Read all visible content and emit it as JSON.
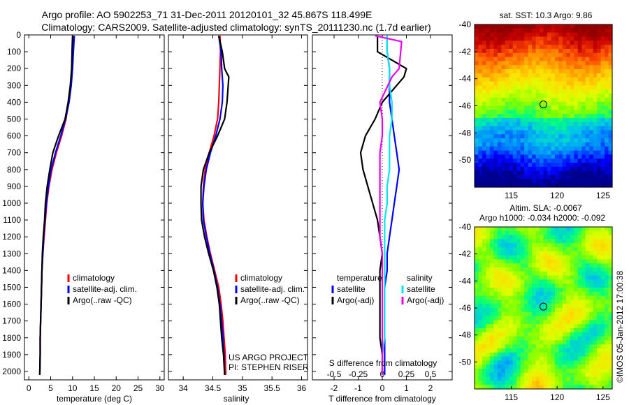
{
  "figure": {
    "title_line1": "Argo profile: AO 5902253_71 31-Dec-2011 20120101_32 45.867S 118.499E",
    "title_line2": "Climatology: CARS2009. Satellite-adjusted climatology: synTS_20111230.nc (1.7d earlier)",
    "credit": "©IMOS 05-Jan-2012 17:00:38",
    "project_line1": "US ARGO PROJECT",
    "project_line2": "PI: STEPHEN RISER"
  },
  "colors": {
    "clim": "#ff0000",
    "sat": "#0000ff",
    "argo": "#000000",
    "sat_s": "#00e5ee",
    "argo_s": "#ee00ee"
  },
  "chart_data": [
    {
      "type": "line",
      "id": "temperature",
      "xlabel": "temperature (deg C)",
      "ylim": [
        2050,
        0
      ],
      "xlim": [
        -1,
        31
      ],
      "xticks": [
        0,
        5,
        10,
        15,
        20,
        25,
        30
      ],
      "yticks": [
        0,
        100,
        200,
        300,
        400,
        500,
        600,
        700,
        800,
        900,
        1000,
        1100,
        1200,
        1300,
        1400,
        1500,
        1600,
        1700,
        1800,
        1900,
        2000
      ],
      "legend": [
        "climatology",
        "satellite-adj. clim.",
        "Argo(..raw -QC)"
      ],
      "series": [
        {
          "name": "climatology",
          "color": "clim",
          "x": [
            10.2,
            10.1,
            9.9,
            9.6,
            9.1,
            8.5,
            7.5,
            6.3,
            5.3,
            4.6,
            4.1,
            3.8,
            3.5,
            3.2,
            3.0,
            2.9,
            2.8,
            2.7,
            2.6,
            2.6,
            2.5
          ],
          "y": [
            5,
            100,
            200,
            300,
            400,
            500,
            600,
            700,
            800,
            900,
            1000,
            1100,
            1200,
            1300,
            1400,
            1500,
            1600,
            1700,
            1800,
            1900,
            2020
          ]
        },
        {
          "name": "satellite-adj. clim.",
          "color": "sat",
          "x": [
            10.4,
            10.2,
            10.0,
            9.7,
            9.2,
            8.4,
            7.3,
            6.1,
            5.1,
            4.5,
            4.0,
            3.7,
            3.4,
            3.2,
            3.0,
            2.9,
            2.8,
            2.7,
            2.6,
            2.6,
            2.5
          ],
          "y": [
            5,
            100,
            200,
            300,
            400,
            500,
            600,
            700,
            800,
            900,
            1000,
            1100,
            1200,
            1300,
            1400,
            1500,
            1600,
            1700,
            1800,
            1900,
            2020
          ]
        },
        {
          "name": "Argo(..raw -QC)",
          "color": "argo",
          "x": [
            10.0,
            9.9,
            9.8,
            9.5,
            9.0,
            8.3,
            6.8,
            5.5,
            4.8,
            4.2,
            3.8,
            3.6,
            3.3,
            3.1,
            3.0,
            2.9,
            2.8,
            2.7,
            2.6,
            2.6,
            2.5
          ],
          "y": [
            5,
            100,
            200,
            300,
            400,
            500,
            600,
            700,
            800,
            900,
            1000,
            1100,
            1200,
            1300,
            1400,
            1500,
            1600,
            1700,
            1800,
            1900,
            2020
          ]
        }
      ]
    },
    {
      "type": "line",
      "id": "salinity",
      "xlabel": "salinity",
      "ylim": [
        2050,
        0
      ],
      "xlim": [
        33.75,
        36.1
      ],
      "xticks": [
        34,
        34.5,
        35,
        35.5,
        36
      ],
      "xticklabels": [
        "34",
        "34.5",
        "35",
        "35.5",
        "36"
      ],
      "legend": [
        "climatology",
        "satellite-adj. clim.",
        "Argo(..raw -QC)"
      ],
      "series": [
        {
          "name": "climatology",
          "color": "clim",
          "x": [
            34.62,
            34.63,
            34.62,
            34.61,
            34.6,
            34.58,
            34.52,
            34.44,
            34.37,
            34.34,
            34.33,
            34.35,
            34.4,
            34.46,
            34.53,
            34.6,
            34.64,
            34.67,
            34.69,
            34.71,
            34.72
          ],
          "y": [
            5,
            100,
            200,
            300,
            400,
            500,
            600,
            700,
            800,
            900,
            1000,
            1100,
            1200,
            1300,
            1400,
            1500,
            1600,
            1700,
            1800,
            1900,
            2020
          ]
        },
        {
          "name": "satellite-adj. clim.",
          "color": "sat",
          "x": [
            34.6,
            34.64,
            34.65,
            34.67,
            34.66,
            34.62,
            34.55,
            34.46,
            34.39,
            34.35,
            34.33,
            34.34,
            34.39,
            34.45,
            34.52,
            34.58,
            34.62,
            34.65,
            34.67,
            34.69,
            34.7
          ],
          "y": [
            5,
            100,
            200,
            300,
            400,
            500,
            600,
            700,
            800,
            900,
            1000,
            1100,
            1200,
            1300,
            1400,
            1500,
            1600,
            1700,
            1800,
            1900,
            2020
          ]
        },
        {
          "name": "Argo(..raw -QC)",
          "color": "argo",
          "x": [
            34.6,
            34.66,
            34.7,
            34.77,
            34.74,
            34.7,
            34.58,
            34.44,
            34.34,
            34.3,
            34.3,
            34.31,
            34.36,
            34.43,
            34.51,
            34.57,
            34.61,
            34.63,
            34.65,
            34.68,
            34.7
          ],
          "y": [
            5,
            100,
            200,
            250,
            400,
            500,
            600,
            700,
            800,
            900,
            1000,
            1100,
            1200,
            1300,
            1400,
            1500,
            1600,
            1700,
            1800,
            1900,
            2020
          ]
        }
      ]
    },
    {
      "type": "line",
      "id": "differences",
      "xlabel": "T difference from climatology",
      "top_axis_label": "S difference from climatology",
      "ylim": [
        2050,
        0
      ],
      "xlim": [
        -2.9,
        2.9
      ],
      "xticks": [
        -2,
        -1,
        0,
        1,
        2
      ],
      "top_ticks": [
        -0.5,
        -0.25,
        0,
        0.25,
        0.5
      ],
      "legend_titles": [
        "temperature",
        "salinity"
      ],
      "legend": [
        "satellite",
        "Argo(-adj)",
        "satellite",
        "Argo(-adj)"
      ],
      "series": [
        {
          "name": "temperature satellite",
          "color": "sat",
          "x": [
            0.2,
            0.2,
            0.3,
            0.3,
            0.3,
            0.4,
            0.5,
            0.6,
            0.7,
            0.6,
            0.5,
            0.4,
            0.3,
            0.2,
            0.2,
            0.1,
            0.1,
            0.1,
            0.1,
            0.1,
            0.1
          ],
          "y": [
            5,
            100,
            200,
            300,
            400,
            500,
            600,
            700,
            800,
            900,
            1000,
            1100,
            1200,
            1300,
            1400,
            1500,
            1600,
            1700,
            1800,
            1900,
            2020
          ]
        },
        {
          "name": "temperature Argo(-adj)",
          "color": "argo",
          "x": [
            -0.2,
            -0.2,
            1.0,
            0.9,
            0.0,
            -0.3,
            -0.7,
            -0.9,
            -0.8,
            -0.6,
            -0.4,
            -0.2,
            -0.1,
            0.0,
            -0.1,
            -0.1,
            -0.1,
            -0.1,
            -0.1,
            0.0,
            0.0
          ],
          "y": [
            5,
            100,
            200,
            250,
            400,
            500,
            600,
            700,
            800,
            900,
            1000,
            1100,
            1200,
            1300,
            1400,
            1500,
            1600,
            1700,
            1800,
            1900,
            2020
          ]
        },
        {
          "name": "salinity satellite",
          "color": "sat_s",
          "x": [
            0.2,
            0.2,
            0.3,
            0.3,
            0.4,
            0.4,
            0.3,
            0.3,
            0.3,
            0.2,
            0.2,
            0.1,
            0.1,
            0.1,
            0.1,
            0.1,
            0.1,
            0.1,
            0.1,
            0.0,
            0.0
          ],
          "y": [
            5,
            100,
            200,
            300,
            400,
            500,
            600,
            700,
            800,
            900,
            1000,
            1100,
            1200,
            1300,
            1400,
            1500,
            1600,
            1700,
            1800,
            1900,
            2020
          ]
        },
        {
          "name": "salinity Argo(-adj)",
          "color": "argo_s",
          "x": [
            -0.3,
            0.8,
            0.7,
            0.4,
            -0.1,
            0.0,
            0.0,
            -0.1,
            -0.1,
            -0.1,
            -0.1,
            -0.1,
            -0.1,
            0.0,
            0.0,
            0.0,
            0.0,
            0.0,
            0.0,
            0.0,
            0.0
          ],
          "y": [
            5,
            40,
            200,
            250,
            400,
            500,
            600,
            700,
            800,
            900,
            1000,
            1100,
            1200,
            1300,
            1400,
            1500,
            1600,
            1700,
            1800,
            1900,
            2020
          ]
        }
      ]
    },
    {
      "type": "heatmap",
      "id": "sst_map",
      "title": "sat. SST: 10.3 Argo: 9.86",
      "xlim": [
        111,
        126
      ],
      "ylim": [
        -52,
        -40
      ],
      "xticks": [
        115,
        120,
        125
      ],
      "yticks": [
        -40,
        -42,
        -44,
        -46,
        -48,
        -50
      ],
      "marker": [
        118.5,
        -45.9
      ]
    },
    {
      "type": "heatmap",
      "id": "sla_map",
      "title": "Altim. SLA: -0.0067",
      "subtitle": "Argo h1000: -0.034 h2000: -0.092",
      "xlim": [
        111,
        126
      ],
      "ylim": [
        -52,
        -40
      ],
      "xticks": [
        115,
        120,
        125
      ],
      "yticks": [
        -40,
        -42,
        -44,
        -46,
        -48,
        -50
      ],
      "marker": [
        118.5,
        -45.9
      ]
    }
  ]
}
